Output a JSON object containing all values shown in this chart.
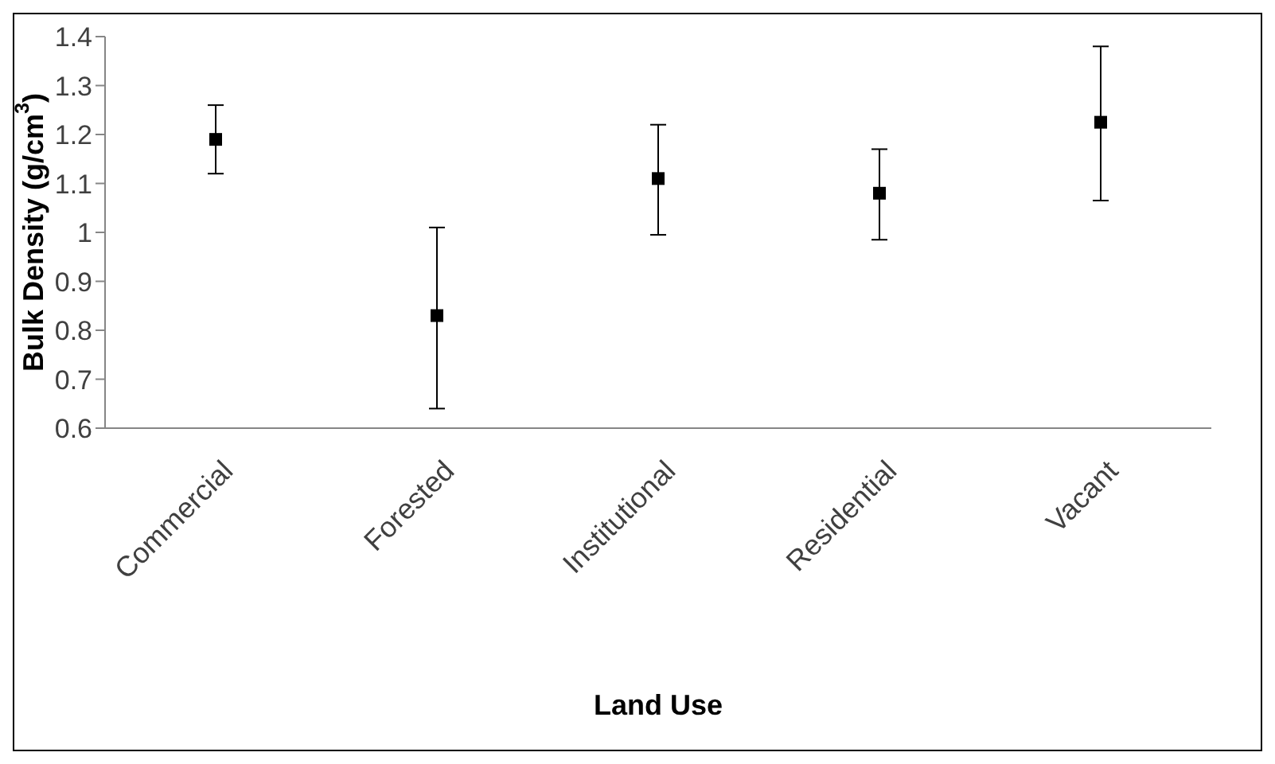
{
  "chart_data": {
    "type": "scatter",
    "xlabel": "Land Use",
    "ylabel": "Bulk Density (g/cm$^{3}$)",
    "categories": [
      "Commercial",
      "Forested",
      "Institutional",
      "Residential",
      "Vacant"
    ],
    "values": [
      1.19,
      0.83,
      1.11,
      1.08,
      1.225
    ],
    "errors": [
      [
        1.12,
        1.26
      ],
      [
        0.64,
        1.01
      ],
      [
        0.995,
        1.22
      ],
      [
        0.985,
        1.17
      ],
      [
        1.065,
        1.38
      ]
    ],
    "color": "#000000",
    "marker": "square",
    "ylim": [
      0.6,
      1.4
    ],
    "yticks": [
      0.6,
      0.7,
      0.8,
      0.9,
      1,
      1.1,
      1.2,
      1.3,
      1.4
    ],
    "grid": false
  }
}
